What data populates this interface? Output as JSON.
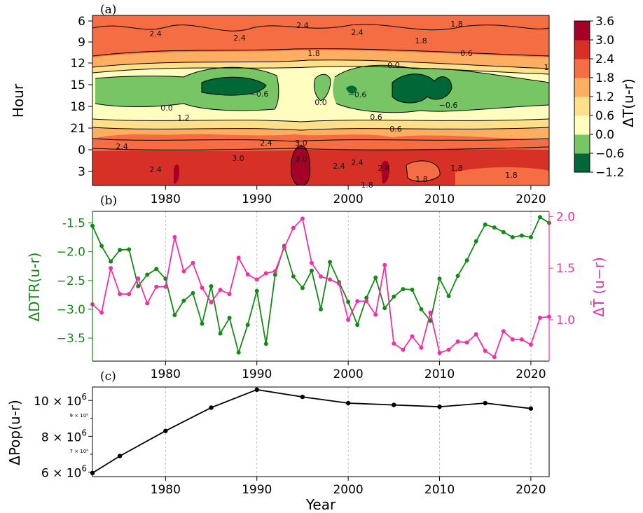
{
  "chart_data": [
    {
      "panel": "(a)",
      "type": "heatmap",
      "ylabel": "Hour",
      "colorbar_label": "ΔT(u-r)",
      "colorbar_ticks": [
        "3.6",
        "3.0",
        "2.4",
        "1.8",
        "1.2",
        "0.6",
        "0.0",
        "−0.6",
        "−1.2"
      ],
      "colorbar_levels": [
        -1.2,
        -0.6,
        0.0,
        0.6,
        1.2,
        1.8,
        2.4,
        3.0,
        3.6
      ],
      "colorbar_colors": [
        "#006837",
        "#78c565",
        "#fffebf",
        "#fee08b",
        "#fdae61",
        "#f46d43",
        "#d73027",
        "#a50026"
      ],
      "hour_tick_labels": [
        "6",
        "9",
        "12",
        "15",
        "18",
        "21",
        "0",
        "3"
      ],
      "x_tick_labels": [
        "1980",
        "1990",
        "2000",
        "2010",
        "2020"
      ],
      "xlim": [
        1972,
        2022
      ],
      "contour_labels": [
        "2.4",
        "2.4",
        "2.4",
        "2.4",
        "1.8",
        "1.8",
        "1.8",
        "0.6",
        "1",
        "0.0",
        "−0.6",
        "0.0",
        "−0.6",
        "−0.6",
        "0.6",
        "0.0",
        "1.2",
        "0.6",
        "2.4",
        "2.4",
        "3.0",
        "1.8",
        "2.4",
        "1.8",
        "2.4",
        "3.0",
        "3.0",
        "2.4",
        "2.4",
        "1.8",
        "1.8"
      ]
    },
    {
      "panel": "(b)",
      "type": "line",
      "x": [
        1972,
        1973,
        1974,
        1975,
        1976,
        1977,
        1978,
        1979,
        1980,
        1981,
        1982,
        1983,
        1984,
        1985,
        1986,
        1987,
        1988,
        1989,
        1990,
        1991,
        1992,
        1993,
        1994,
        1995,
        1996,
        1997,
        1998,
        1999,
        2000,
        2001,
        2002,
        2003,
        2004,
        2005,
        2006,
        2007,
        2008,
        2009,
        2010,
        2011,
        2012,
        2013,
        2014,
        2015,
        2016,
        2017,
        2018,
        2019,
        2020,
        2021,
        2022
      ],
      "series": [
        {
          "name": "ΔDTR(u-r)",
          "color": "#138a13",
          "axis": "left",
          "values": [
            -1.55,
            -1.9,
            -2.17,
            -1.97,
            -1.96,
            -2.6,
            -2.4,
            -2.3,
            -2.47,
            -3.1,
            -2.85,
            -2.72,
            -3.25,
            -2.6,
            -3.42,
            -3.15,
            -3.75,
            -3.27,
            -2.68,
            -3.6,
            -2.4,
            -1.9,
            -2.43,
            -2.63,
            -2.33,
            -3.0,
            -2.18,
            -2.53,
            -2.87,
            -3.27,
            -2.8,
            -2.45,
            -2.98,
            -2.78,
            -2.65,
            -2.66,
            -3.0,
            -3.2,
            -2.47,
            -2.77,
            -2.42,
            -2.15,
            -1.82,
            -1.53,
            -1.58,
            -1.66,
            -1.75,
            -1.72,
            -1.75,
            -1.4,
            -1.5
          ]
        },
        {
          "name": "ΔT̄ (u−r)",
          "color": "#f22fa8",
          "axis": "right",
          "values": [
            1.15,
            1.07,
            1.5,
            1.25,
            1.25,
            1.4,
            1.16,
            1.32,
            1.32,
            1.8,
            1.47,
            1.55,
            1.31,
            1.17,
            1.29,
            1.25,
            1.6,
            1.44,
            1.39,
            1.45,
            1.47,
            1.7,
            1.89,
            1.98,
            1.55,
            1.42,
            1.39,
            1.35,
            1.0,
            1.18,
            1.18,
            1.05,
            1.53,
            0.77,
            0.71,
            0.84,
            0.73,
            1.07,
            0.68,
            0.71,
            0.79,
            0.78,
            0.86,
            0.7,
            0.64,
            0.89,
            0.81,
            0.81,
            0.76,
            1.02,
            1.03
          ]
        }
      ],
      "ylabel_left": "ΔDTR(u-r)",
      "ylim_left": [
        -3.9,
        -1.3
      ],
      "yticks_left": [
        "-1.5",
        "−2.0",
        "−2.5",
        "−3.0",
        "−3.5"
      ],
      "ylim_right": [
        0.6,
        2.05
      ],
      "yticks_right": [
        "2.0",
        "1.5",
        "1.0"
      ],
      "xlim": [
        1972,
        2022
      ],
      "x_tick_labels": [
        "1980",
        "1990",
        "2000",
        "2010",
        "2020"
      ]
    },
    {
      "panel": "(c)",
      "type": "line",
      "x": [
        1972,
        1975,
        1980,
        1985,
        1990,
        1995,
        2000,
        2005,
        2010,
        2015,
        2020
      ],
      "series": [
        {
          "name": "ΔPop(u-r)",
          "color": "#000000",
          "values": [
            5950000.0,
            6900000.0,
            8300000.0,
            9600000.0,
            10600000.0,
            10200000.0,
            9850000.0,
            9750000.0,
            9650000.0,
            9850000.0,
            9550000.0
          ]
        }
      ],
      "ylabel": "ΔPop(u-r)",
      "xlabel": "Year",
      "ylim": [
        5750000.0,
        10750000.0
      ],
      "xlim": [
        1972,
        2022
      ],
      "x_tick_labels": [
        "1980",
        "1990",
        "2000",
        "2010",
        "2020"
      ],
      "ytick_major": {
        "base": "10 × 10",
        "exp": "6",
        "base2": "8 × 10",
        "base3": "6 × 10"
      },
      "ytick_minor": [
        "9 × 10⁶",
        "7 × 10⁶"
      ]
    }
  ]
}
